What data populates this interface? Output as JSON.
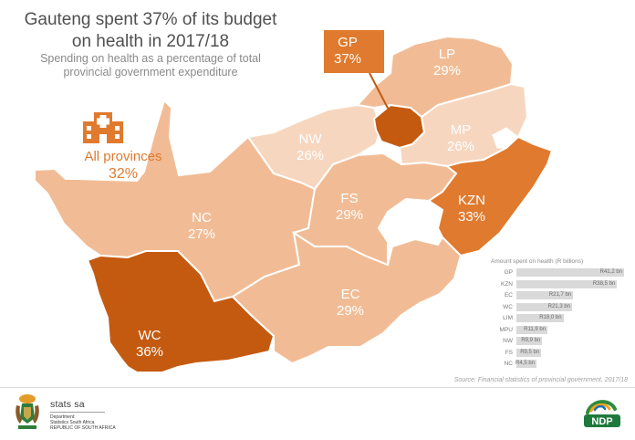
{
  "title_line1": "Gauteng spent 37% of its budget",
  "title_line2": "on health in 2017/18",
  "subtitle_line1": "Spending on health as a percentage of total",
  "subtitle_line2": "provincial government expenditure",
  "colors": {
    "lightest": "#f7d6bf",
    "light": "#f1bc95",
    "medium": "#e07a2e",
    "dark": "#c45a10",
    "border": "#ffffff",
    "bar": "#d9d9d9",
    "accent": "#e07a2e"
  },
  "provinces": [
    {
      "code": "GP",
      "name_label": "GP",
      "value_label": "37%",
      "share": 37,
      "shade": "dark"
    },
    {
      "code": "LP",
      "name_label": "LP",
      "value_label": "29%",
      "share": 29,
      "shade": "light"
    },
    {
      "code": "MP",
      "name_label": "MP",
      "value_label": "26%",
      "share": 26,
      "shade": "lightest"
    },
    {
      "code": "NW",
      "name_label": "NW",
      "value_label": "26%",
      "share": 26,
      "shade": "lightest"
    },
    {
      "code": "KZN",
      "name_label": "KZN",
      "value_label": "33%",
      "share": 33,
      "shade": "medium"
    },
    {
      "code": "FS",
      "name_label": "FS",
      "value_label": "29%",
      "share": 29,
      "shade": "light"
    },
    {
      "code": "NC",
      "name_label": "NC",
      "value_label": "27%",
      "share": 27,
      "shade": "light"
    },
    {
      "code": "EC",
      "name_label": "EC",
      "value_label": "29%",
      "share": 29,
      "shade": "light"
    },
    {
      "code": "WC",
      "name_label": "WC",
      "value_label": "36%",
      "share": 36,
      "shade": "dark"
    }
  ],
  "all_provinces": {
    "label": "All provinces",
    "value": "32%",
    "icon": "hospital-icon"
  },
  "chart_data": {
    "type": "bar",
    "title": "Amount spent on health (R billions)",
    "categories": [
      "GP",
      "KZN",
      "EC",
      "WC",
      "LIM",
      "MPU",
      "NW",
      "FS",
      "NC"
    ],
    "values": [
      41.2,
      38.5,
      21.7,
      21.3,
      18.0,
      11.9,
      9.9,
      9.5,
      4.5
    ],
    "value_labels": [
      "R41,2 bn",
      "R38,5 bn",
      "R21,7 bn",
      "R21,3 bn",
      "R18,0 bn",
      "R11,9 bn",
      "R9,9 bn",
      "R9,5 bn",
      "R4,5 bn"
    ],
    "xlim": [
      0,
      41.2
    ]
  },
  "source": "Source: Financial statistics of provincial government, 2017/18",
  "footer": {
    "org_name": "stats sa",
    "org_line1": "Department:",
    "org_line2": "Statistics South Africa",
    "org_line3": "REPUBLIC OF SOUTH AFRICA",
    "right_logo_text": "NDP",
    "right_logo_icon": "ndp-logo"
  }
}
